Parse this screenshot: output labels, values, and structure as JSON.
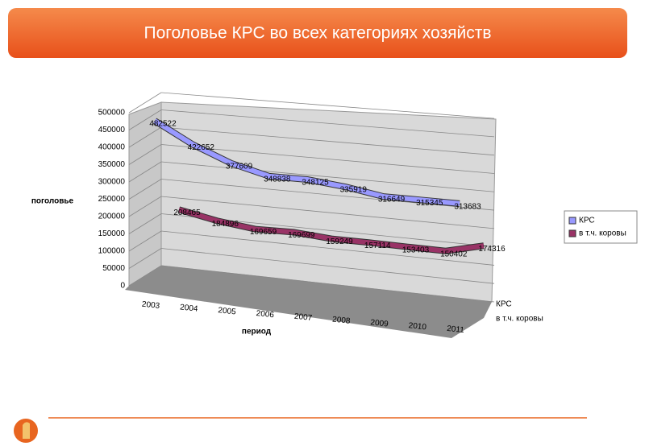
{
  "chart_data": {
    "type": "line",
    "title": "Поголовье КРС во всех категориях хозяйств",
    "ylabel": "поголовье",
    "xlabel": "период",
    "categories": [
      "2003",
      "2004",
      "2005",
      "2006",
      "2007",
      "2008",
      "2009",
      "2010",
      "2011"
    ],
    "series": [
      {
        "name": "КРС",
        "color": "#9999ff",
        "values": [
          482522,
          422652,
          377609,
          348838,
          348125,
          335919,
          316649,
          315345,
          313683
        ]
      },
      {
        "name": "в т.ч. коровы",
        "color": "#993366",
        "values": [
          208465,
          184896,
          169659,
          169699,
          159249,
          157114,
          153403,
          150402,
          174316
        ]
      }
    ],
    "ylim": [
      0,
      500000
    ],
    "yticks": [
      0,
      50000,
      100000,
      150000,
      200000,
      250000,
      300000,
      350000,
      400000,
      450000,
      500000
    ],
    "grid": true
  }
}
